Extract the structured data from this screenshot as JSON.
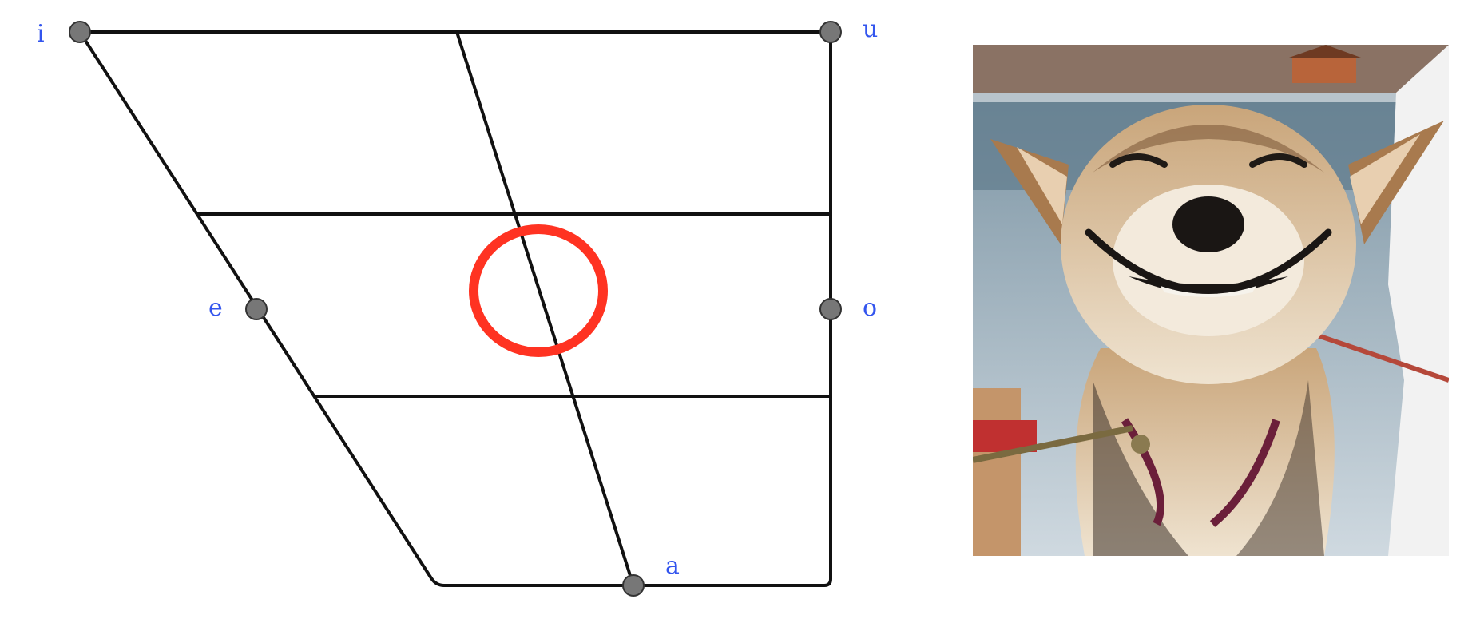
{
  "vowel_chart": {
    "vowels": [
      {
        "symbol": "i",
        "position": "close-front"
      },
      {
        "symbol": "u",
        "position": "close-back"
      },
      {
        "symbol": "e",
        "position": "mid-front"
      },
      {
        "symbol": "o",
        "position": "mid-back"
      },
      {
        "symbol": "a",
        "position": "open-central"
      }
    ],
    "highlight": "mid-central",
    "colors": {
      "lines": "#111111",
      "dots": "#777777",
      "labels": "#3355ee",
      "highlight": "#ff3322"
    }
  },
  "photo": {
    "subject": "smiling-dog",
    "icon": "photo-icon"
  }
}
